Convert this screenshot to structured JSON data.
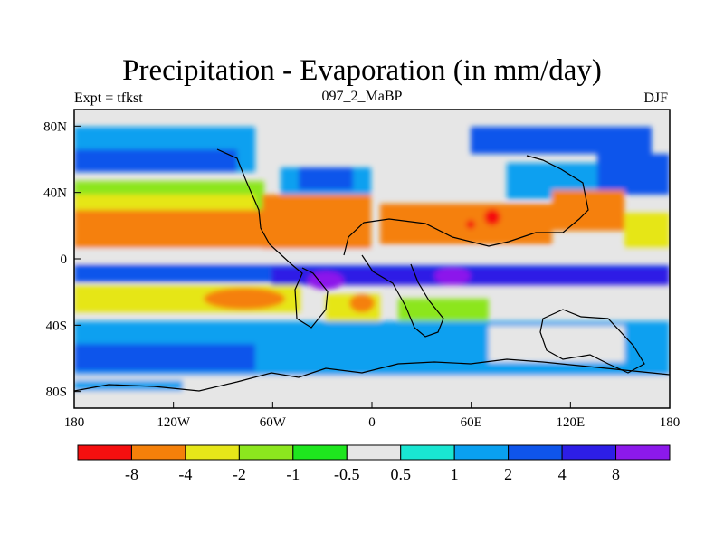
{
  "header": {
    "title": "Precipitation - Evaporation (in mm/day)",
    "left_label": "Expt = tfkst",
    "center_label": "097_2_MaBP",
    "right_label": "DJF"
  },
  "map": {
    "lon_ticks": [
      {
        "value": -180,
        "label": "180"
      },
      {
        "value": -120,
        "label": "120W"
      },
      {
        "value": -60,
        "label": "60W"
      },
      {
        "value": 0,
        "label": "0"
      },
      {
        "value": 60,
        "label": "60E"
      },
      {
        "value": 120,
        "label": "120E"
      },
      {
        "value": 180,
        "label": "180"
      }
    ],
    "lat_ticks": [
      {
        "value": 80,
        "label": "80N"
      },
      {
        "value": 40,
        "label": "40N"
      },
      {
        "value": 0,
        "label": "0"
      },
      {
        "value": -40,
        "label": "40S"
      },
      {
        "value": -80,
        "label": "80S"
      }
    ],
    "lon_range": [
      -180,
      180
    ],
    "lat_range": [
      -90,
      90
    ]
  },
  "colorbar": {
    "colors": [
      "#f50f0f",
      "#f5800a",
      "#e6e619",
      "#8ce61e",
      "#1ee61e",
      "#e6e6e6",
      "#19e6d2",
      "#0aa0f0",
      "#0f55eb",
      "#2d1ee6",
      "#8c19eb"
    ],
    "labels": [
      "-8",
      "-4",
      "-2",
      "-1",
      "-0.5",
      "0.5",
      "1",
      "2",
      "4",
      "8"
    ]
  }
}
